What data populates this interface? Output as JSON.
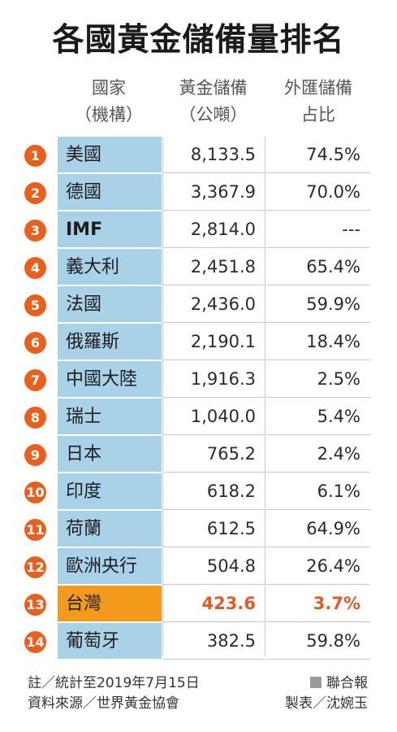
{
  "title": "各國黃金儲備量排名",
  "headers": {
    "country": [
      "國家",
      "（機構）"
    ],
    "gold": [
      "黃金儲備",
      "（公噸）"
    ],
    "ratio": [
      "外匯儲備",
      "占比"
    ]
  },
  "rows": [
    {
      "rank": "1",
      "name": "美國",
      "gold": "8,133.5",
      "ratio": "74.5%"
    },
    {
      "rank": "2",
      "name": "德國",
      "gold": "3,367.9",
      "ratio": "70.0%"
    },
    {
      "rank": "3",
      "name": "IMF",
      "gold": "2,814.0",
      "ratio": "---"
    },
    {
      "rank": "4",
      "name": "義大利",
      "gold": "2,451.8",
      "ratio": "65.4%"
    },
    {
      "rank": "5",
      "name": "法國",
      "gold": "2,436.0",
      "ratio": "59.9%"
    },
    {
      "rank": "6",
      "name": "俄羅斯",
      "gold": "2,190.1",
      "ratio": "18.4%"
    },
    {
      "rank": "7",
      "name": "中國大陸",
      "gold": "1,916.3",
      "ratio": "2.5%"
    },
    {
      "rank": "8",
      "name": "瑞士",
      "gold": "1,040.0",
      "ratio": "5.4%"
    },
    {
      "rank": "9",
      "name": "日本",
      "gold": "765.2",
      "ratio": "2.4%"
    },
    {
      "rank": "10",
      "name": "印度",
      "gold": "618.2",
      "ratio": "6.1%"
    },
    {
      "rank": "11",
      "name": "荷蘭",
      "gold": "612.5",
      "ratio": "64.9%"
    },
    {
      "rank": "12",
      "name": "歐洲央行",
      "gold": "504.8",
      "ratio": "26.4%"
    },
    {
      "rank": "13",
      "name": "台灣",
      "gold": "423.6",
      "ratio": "3.7%",
      "highlight": true
    },
    {
      "rank": "14",
      "name": "葡萄牙",
      "gold": "382.5",
      "ratio": "59.8%"
    }
  ],
  "footer": {
    "note": "註／統計至2019年7月15日",
    "source": "資料來源／世界黃金協會",
    "publisher": "聯合報",
    "maker": "製表／沈婉玉"
  },
  "colors": {
    "rank_badge": "#e9601e",
    "name_cell": "#a9d2e8",
    "highlight_cell": "#f39a1c",
    "highlight_text": "#e05a2a"
  }
}
